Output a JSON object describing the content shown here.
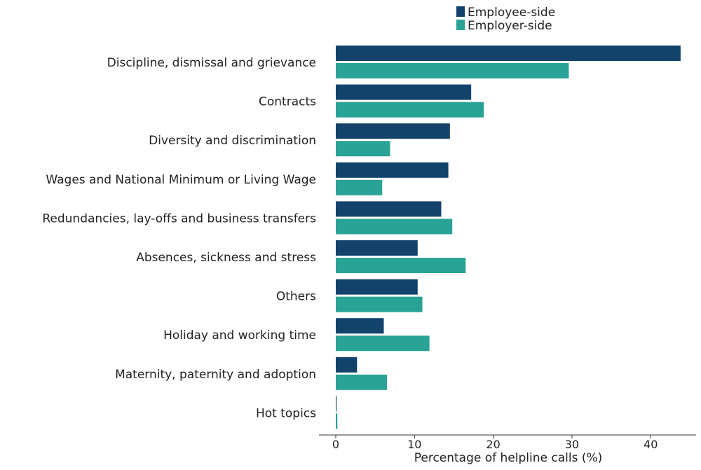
{
  "chart_data": {
    "type": "bar",
    "orientation": "horizontal",
    "xlabel": "Percentage of helpline calls (%)",
    "ylabel": "",
    "xlim": [
      -2,
      45
    ],
    "xticks": [
      0,
      10,
      20,
      30,
      40
    ],
    "grid": false,
    "legend_position": "top",
    "categories": [
      "Discipline, dismissal and grievance",
      "Contracts",
      "Diversity and discrimination",
      "Wages and National Minimum or Living Wage",
      "Redundancies, lay-offs and business transfers",
      "Absences, sickness and stress",
      "Others",
      "Holiday and working time",
      "Maternity, paternity and adoption",
      "Hot topics"
    ],
    "series": [
      {
        "name": "Employee-side",
        "color": "#13436b",
        "values": [
          43.8,
          17.2,
          14.5,
          14.3,
          13.4,
          10.4,
          10.4,
          6.1,
          2.7,
          0.1
        ]
      },
      {
        "name": "Employer-side",
        "color": "#29a396",
        "values": [
          29.6,
          18.8,
          6.9,
          5.9,
          14.8,
          16.5,
          11.0,
          11.9,
          6.5,
          0.2
        ]
      }
    ]
  }
}
